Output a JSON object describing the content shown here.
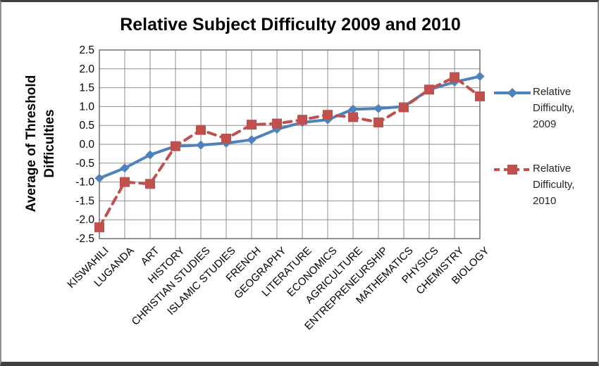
{
  "figure": {
    "title": "Relative Subject Difficulty 2009 and 2010"
  },
  "chart_data": {
    "type": "line",
    "title": "Relative Subject Difficulty 2009 and 2010",
    "xlabel": "",
    "ylabel": "Average of Threshold Difficulties",
    "ylim": [
      -2.5,
      2.5
    ],
    "ytick_step": 0.5,
    "y_tick_labels": [
      "2.5",
      "2.0",
      "1.5",
      "1.0",
      "0.5",
      "0.0",
      "-0.5",
      "-1.0",
      "-1.5",
      "-2.0",
      "-2.5"
    ],
    "grid": true,
    "legend_position": "right",
    "categories": [
      "KISWAHILI",
      "LUGANDA",
      "ART",
      "HISTORY",
      "CHRISTIAN STUDIES",
      "ISLAMIC STUDIES",
      "FRENCH",
      "GEOGRAPHY",
      "LITERATURE",
      "ECONOMICS",
      "AGRICULTURE",
      "ENTREPRENEURSHIP",
      "MATHEMATICS",
      "PHYSICS",
      "CHEMISTRY",
      "BIOLOGY"
    ],
    "series": [
      {
        "name": "Relative Difficulty, 2009",
        "color": "#4F81BD",
        "marker": "diamond",
        "line_style": "solid",
        "values": [
          -0.9,
          -0.63,
          -0.28,
          -0.05,
          -0.02,
          0.03,
          0.12,
          0.4,
          0.58,
          0.65,
          0.93,
          0.95,
          1.0,
          1.45,
          1.65,
          1.8
        ]
      },
      {
        "name": "Relative Difficulty, 2010",
        "color": "#C0504D",
        "marker": "square",
        "line_style": "dashed",
        "values": [
          -2.2,
          -1.0,
          -1.05,
          -0.05,
          0.38,
          0.15,
          0.52,
          0.55,
          0.65,
          0.78,
          0.72,
          0.58,
          0.98,
          1.45,
          1.78,
          1.27
        ]
      }
    ],
    "colors": {
      "grid": "#8E8E8E",
      "plot_border": "#595959",
      "frame": "#404040",
      "background": "#FFFFFF",
      "axis_text": "#000000",
      "legend_text": "#262626"
    }
  }
}
